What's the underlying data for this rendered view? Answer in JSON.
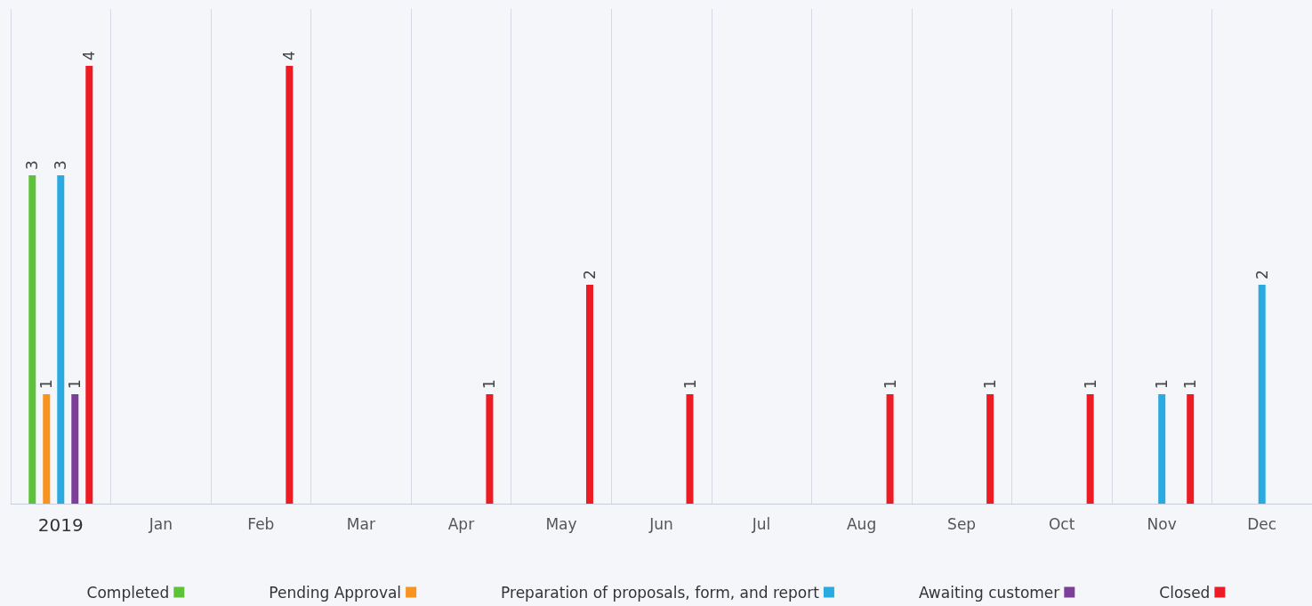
{
  "chart_data": {
    "type": "bar",
    "categories": [
      "2019",
      "Jan",
      "Feb",
      "Mar",
      "Apr",
      "May",
      "Jun",
      "Jul",
      "Aug",
      "Sep",
      "Oct",
      "Nov",
      "Dec"
    ],
    "series": [
      {
        "name": "Completed",
        "color": "#5dc13a",
        "values": [
          3,
          null,
          null,
          null,
          null,
          null,
          null,
          null,
          null,
          null,
          null,
          null,
          null
        ]
      },
      {
        "name": "Pending Approval",
        "color": "#f7931e",
        "values": [
          1,
          null,
          null,
          null,
          null,
          null,
          null,
          null,
          null,
          null,
          null,
          null,
          null
        ]
      },
      {
        "name": "Preparation of proposals, form, and report",
        "color": "#29abe2",
        "values": [
          3,
          null,
          null,
          null,
          null,
          null,
          null,
          null,
          null,
          null,
          null,
          1,
          2
        ]
      },
      {
        "name": "Awaiting customer",
        "color": "#7b3f98",
        "values": [
          1,
          null,
          null,
          null,
          null,
          null,
          null,
          null,
          null,
          null,
          null,
          null,
          null
        ]
      },
      {
        "name": "Closed",
        "color": "#ed1c24",
        "values": [
          4,
          null,
          4,
          null,
          1,
          2,
          1,
          null,
          1,
          1,
          1,
          1,
          null
        ]
      }
    ],
    "data_labels": true,
    "grid": "x",
    "legend": "bottom"
  }
}
